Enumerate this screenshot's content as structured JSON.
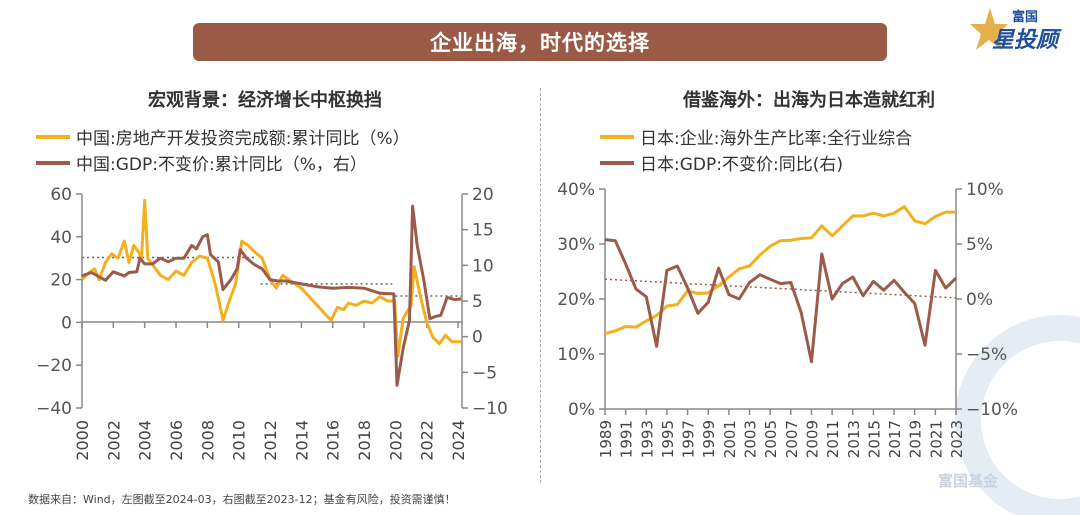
{
  "banner": {
    "title": "企业出海，时代的选择"
  },
  "logo": {
    "line1": "富国",
    "line2": "星投顾"
  },
  "watermark": {
    "text": "富国基金"
  },
  "footer": {
    "text": "数据来自：Wind，左图截至2024-03，右图截至2023-12；基金有风险，投资需谨慎！"
  },
  "colors": {
    "yellow": "#F2B01E",
    "brown": "#9C5A4A",
    "banner": "#9B5A46"
  },
  "chart_data": [
    {
      "type": "line",
      "title": "宏观背景：经济增长中枢换挡",
      "ylim_left": [
        -40,
        60
      ],
      "yticks_left": [
        "60",
        "40",
        "20",
        "0",
        "−20",
        "−40"
      ],
      "ylim_right": [
        -10,
        20
      ],
      "yticks_right": [
        "20",
        "15",
        "10",
        "5",
        "0",
        "−5",
        "−10"
      ],
      "xlim": [
        2000,
        2024.25
      ],
      "xticks": [
        "2000",
        "2002",
        "2004",
        "2006",
        "2008",
        "2010",
        "2012",
        "2014",
        "2016",
        "2018",
        "2020",
        "2022",
        "2024"
      ],
      "legend_placement": "top-left",
      "series": [
        {
          "name": "中国:房地产开发投资完成额:累计同比（%）",
          "axis": "left",
          "color": "#F2B01E",
          "x": [
            2000,
            2000.4,
            2000.8,
            2001.1,
            2001.5,
            2001.9,
            2002.3,
            2002.7,
            2003,
            2003.3,
            2003.6,
            2003.8,
            2004.0,
            2004.2,
            2004.6,
            2005,
            2005.5,
            2006,
            2006.5,
            2007,
            2007.5,
            2008,
            2008.5,
            2008.8,
            2009.0,
            2009.4,
            2009.8,
            2010.2,
            2010.6,
            2011,
            2011.5,
            2012,
            2012.4,
            2012.8,
            2013.2,
            2013.6,
            2014,
            2014.5,
            2015,
            2015.5,
            2015.9,
            2016.3,
            2016.7,
            2017,
            2017.5,
            2018,
            2018.5,
            2019,
            2019.5,
            2019.95,
            2020.15,
            2020.5,
            2021.0,
            2021.2,
            2021.6,
            2022.0,
            2022.4,
            2022.8,
            2023.2,
            2023.6,
            2024.2
          ],
          "y": [
            20,
            23,
            25,
            20,
            28,
            32,
            30,
            38,
            28,
            36,
            33,
            30,
            57,
            30,
            26,
            22,
            20,
            24,
            22,
            28,
            31,
            30,
            18,
            8,
            1,
            10,
            18,
            38,
            36,
            33,
            30,
            20,
            16,
            22,
            20,
            18,
            16,
            12,
            8,
            4,
            1,
            7,
            6,
            9,
            8,
            10,
            9,
            12,
            10,
            10,
            -16,
            2,
            8,
            26,
            12,
            0,
            -7,
            -10,
            -6,
            -9,
            -9
          ]
        },
        {
          "name": "中国:GDP:不变价:累计同比（%，右）",
          "axis": "right",
          "color": "#9C5A4A",
          "x": [
            2000,
            2000.6,
            2001,
            2001.5,
            2002,
            2002.7,
            2003,
            2003.5,
            2003.7,
            2004,
            2004.5,
            2005,
            2005.5,
            2006,
            2006.5,
            2007,
            2007.3,
            2007.7,
            2008,
            2008.2,
            2008.7,
            2009.0,
            2009.5,
            2009.9,
            2010.1,
            2010.5,
            2011,
            2011.5,
            2012,
            2012.5,
            2013,
            2014,
            2015,
            2016,
            2017,
            2018,
            2019,
            2019.9,
            2020.1,
            2020.5,
            2020.9,
            2021.1,
            2021.4,
            2021.8,
            2022.2,
            2022.5,
            2022.9,
            2023.3,
            2023.8,
            2024.2
          ],
          "y": [
            8.5,
            9.0,
            8.5,
            7.9,
            9.1,
            8.5,
            9.0,
            9.1,
            11.0,
            10.2,
            10.2,
            11.0,
            10.5,
            11.0,
            11.0,
            12.8,
            12.3,
            14.0,
            14.3,
            11.5,
            10.5,
            6.6,
            8.0,
            9.5,
            12.2,
            11.0,
            10.1,
            9.5,
            8.0,
            7.8,
            7.8,
            7.4,
            7.0,
            6.8,
            6.9,
            6.8,
            6.1,
            6.0,
            -6.8,
            -1.6,
            2.3,
            18.3,
            12.7,
            8.1,
            2.5,
            2.8,
            3.0,
            5.5,
            5.2,
            5.3
          ]
        }
      ],
      "reference_lines": [
        {
          "axis": "right",
          "x": [
            2000,
            2011
          ],
          "y": 11.1
        },
        {
          "axis": "right",
          "x": [
            2011.4,
            2019.8
          ],
          "y": 7.4
        },
        {
          "axis": "right",
          "x": [
            2020,
            2024.2
          ],
          "y": 5.7
        }
      ]
    },
    {
      "type": "line",
      "title": "借鉴海外：出海为日本造就红利",
      "ylim_left": [
        0,
        40
      ],
      "yticks_left": [
        "40%",
        "30%",
        "20%",
        "10%",
        "0%"
      ],
      "ylim_right": [
        -10,
        10
      ],
      "yticks_right": [
        "10%",
        "5%",
        "0%",
        "−5%",
        "−10%"
      ],
      "xlim": [
        1989,
        2023
      ],
      "xticks": [
        "1989",
        "1991",
        "1993",
        "1995",
        "1997",
        "1999",
        "2001",
        "2003",
        "2005",
        "2007",
        "2009",
        "2011",
        "2013",
        "2015",
        "2017",
        "2019",
        "2021",
        "2023"
      ],
      "legend_placement": "top-left",
      "series": [
        {
          "name": "日本:企业:海外生产比率:全行业综合",
          "axis": "left",
          "color": "#F2B01E",
          "x_start": 1989,
          "y": [
            13.7,
            14.2,
            15.0,
            14.9,
            16.0,
            17.0,
            18.7,
            19.0,
            21.5,
            21.0,
            21.1,
            22.4,
            24.0,
            25.5,
            26.0,
            28.0,
            29.6,
            30.6,
            30.7,
            31.0,
            31.1,
            33.3,
            31.5,
            33.3,
            35.1,
            35.1,
            35.6,
            35.1,
            35.6,
            36.8,
            34.2,
            33.7,
            35.0,
            35.8,
            35.8
          ]
        },
        {
          "name": "日本:GDP:不变价:同比(右)",
          "axis": "right",
          "color": "#9C5A4A",
          "x_start": 1989,
          "y": [
            5.4,
            5.3,
            3.2,
            0.9,
            0.2,
            -4.3,
            2.6,
            3.0,
            1.0,
            -1.3,
            -0.3,
            2.8,
            0.4,
            0.0,
            1.5,
            2.2,
            1.8,
            1.4,
            1.5,
            -1.2,
            -5.7,
            4.1,
            0.0,
            1.4,
            2.0,
            0.3,
            1.6,
            0.8,
            1.7,
            0.6,
            -0.4,
            -4.2,
            2.6,
            1.0,
            1.9
          ]
        }
      ],
      "trend_line": {
        "axis": "right",
        "x": [
          1989,
          2023
        ],
        "y": [
          1.8,
          0.1
        ]
      }
    }
  ]
}
